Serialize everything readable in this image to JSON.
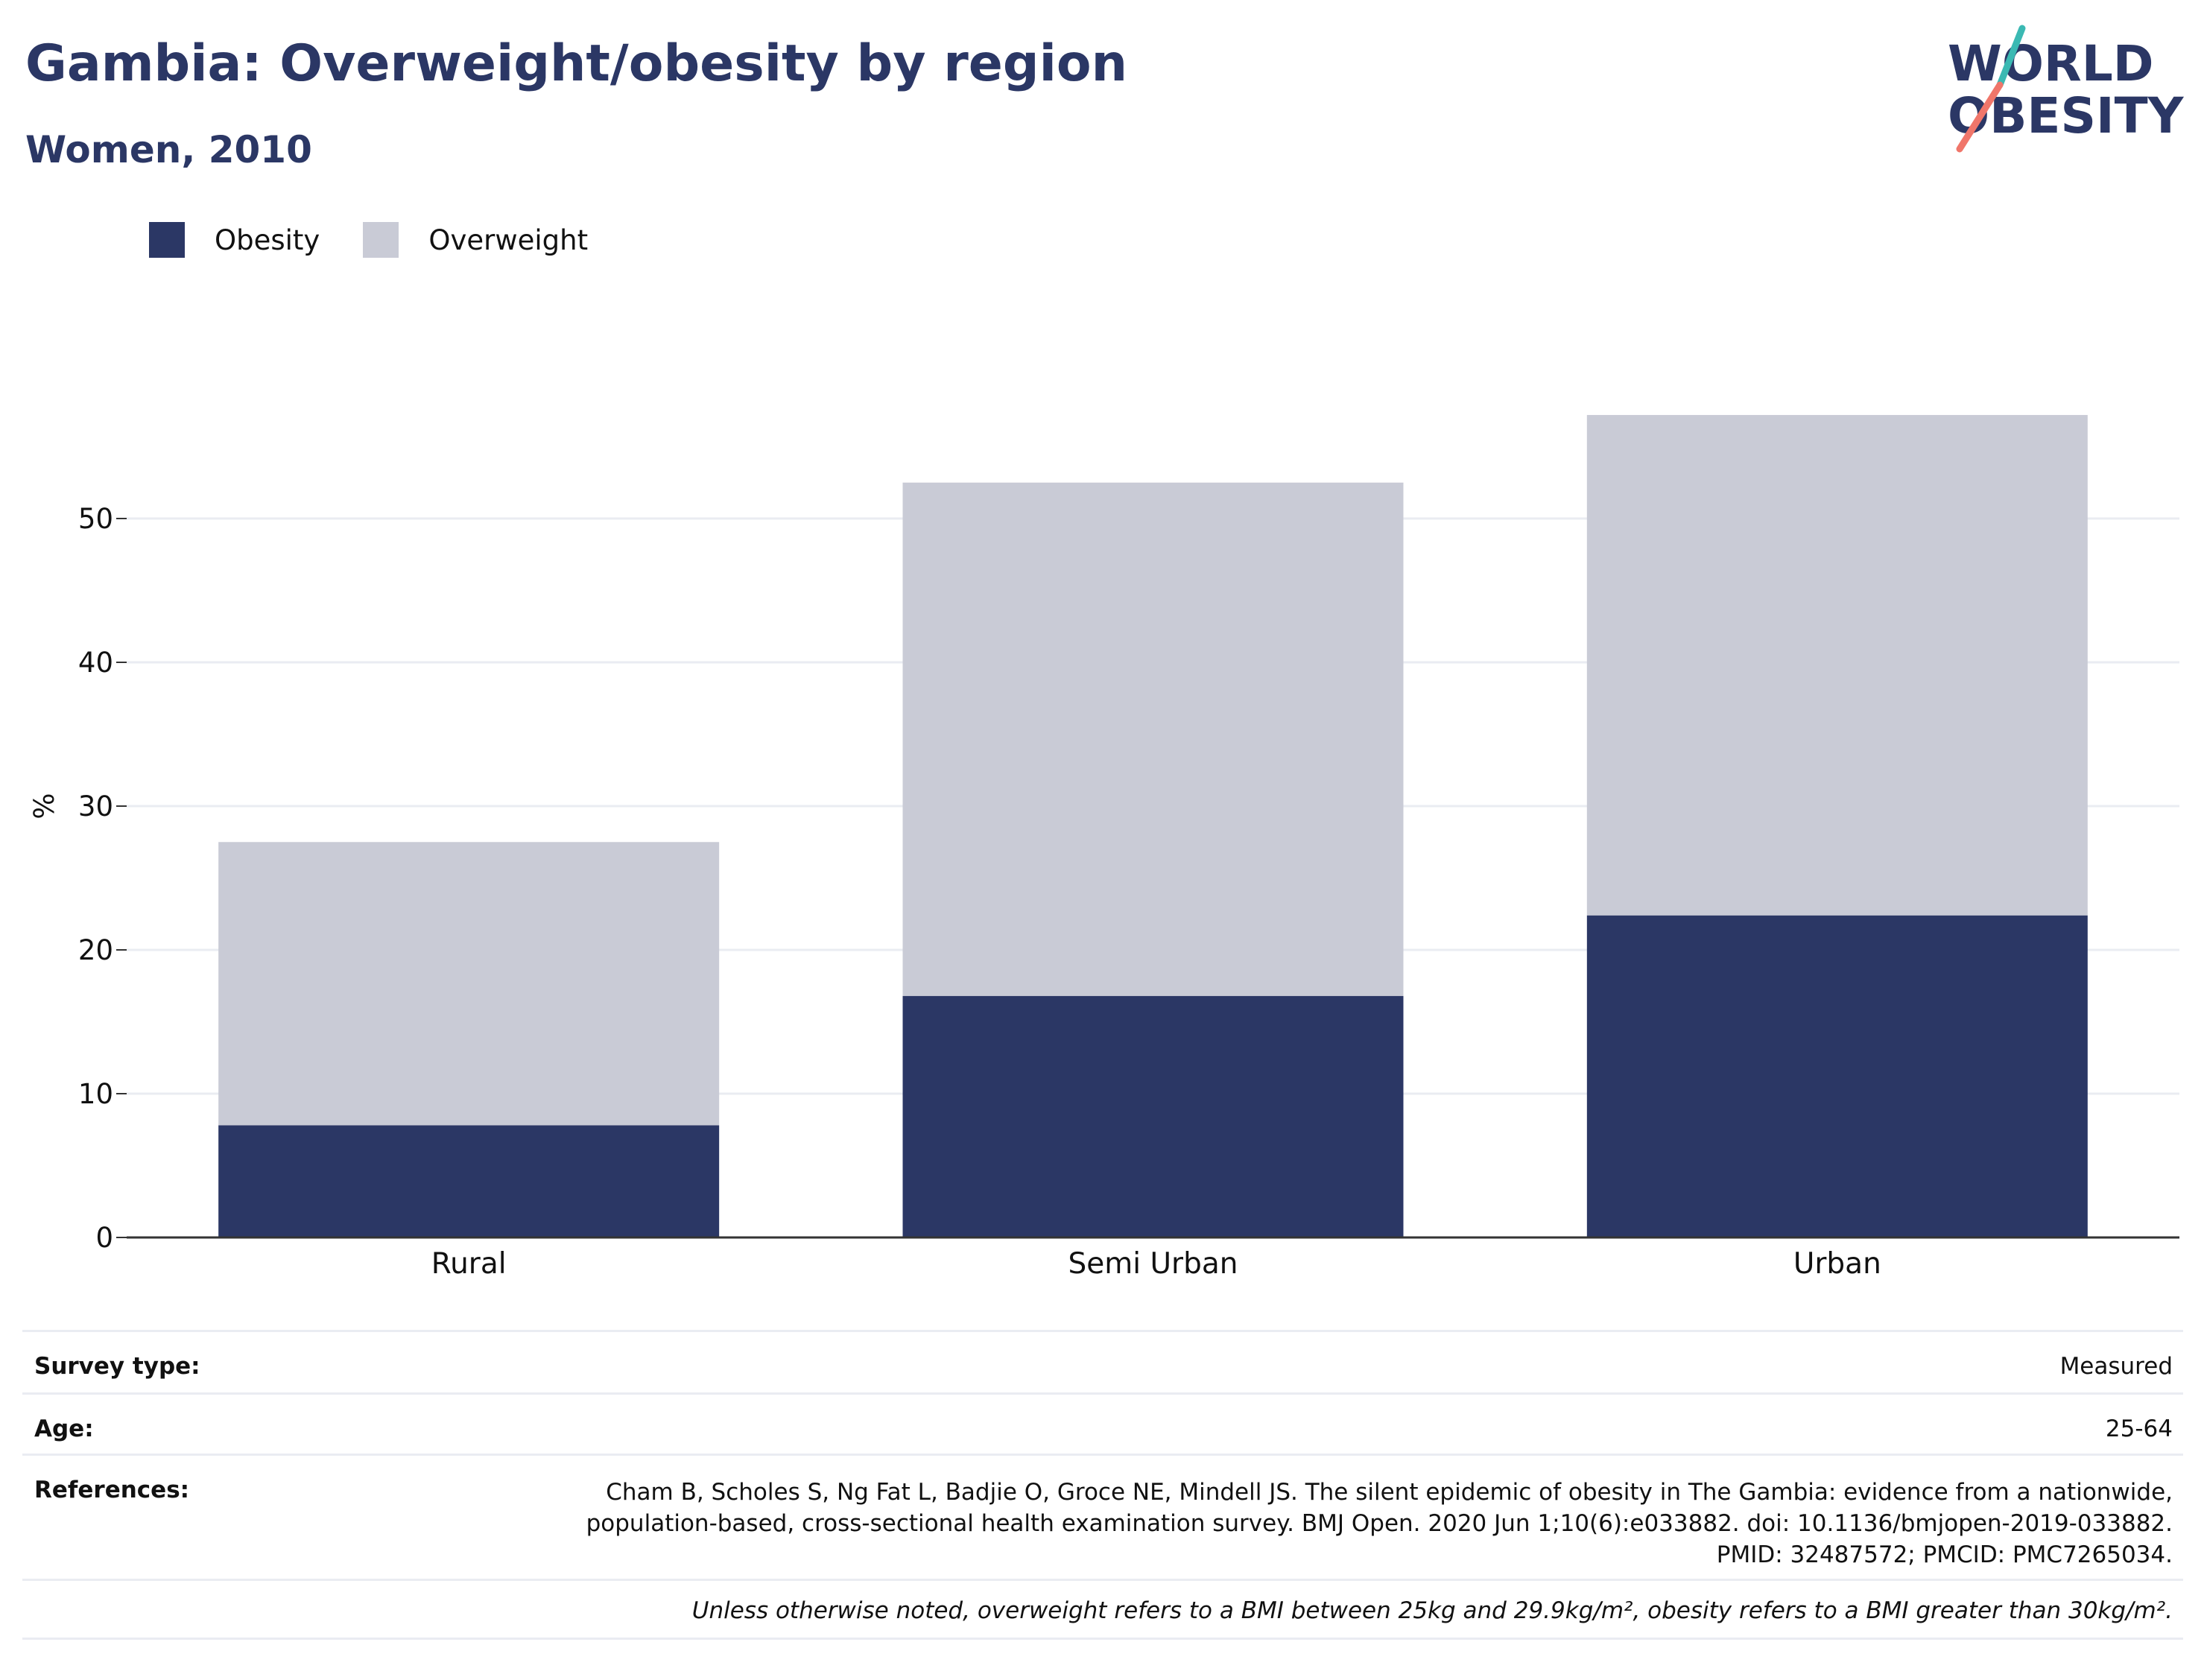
{
  "header": {
    "title": "Gambia: Overweight/obesity by region",
    "subtitle": "Women, 2010"
  },
  "logo": {
    "line1": "WORLD",
    "line2": "OBESITY"
  },
  "colors": {
    "obesity": "#2b3765",
    "overweight": "#c9cbd6",
    "text_dark": "#2b3765",
    "logo_teal": "#3bb9b3",
    "logo_coral": "#f0766a",
    "grid": "#eaecf2"
  },
  "chart_data": {
    "type": "bar",
    "stacked": true,
    "categories": [
      "Rural",
      "Semi Urban",
      "Urban"
    ],
    "series": [
      {
        "name": "Obesity",
        "values": [
          7.8,
          16.8,
          22.4
        ]
      },
      {
        "name": "Overweight",
        "values": [
          19.7,
          35.7,
          34.8
        ]
      }
    ],
    "ylabel": "%",
    "xlabel": "",
    "ylim": [
      0,
      60
    ],
    "yticks": [
      0,
      10,
      20,
      30,
      40,
      50
    ],
    "grid": true,
    "legend_position": "top-left"
  },
  "info": {
    "survey_type_label": "Survey type:",
    "survey_type_value": "Measured",
    "age_label": "Age:",
    "age_value": "25-64",
    "references_label": "References:",
    "references_value": "Cham B, Scholes S, Ng Fat L, Badjie O, Groce NE, Mindell JS. The silent epidemic of obesity in The Gambia: evidence from a nationwide, population-based, cross-sectional health examination survey. BMJ Open. 2020 Jun 1;10(6):e033882. doi: 10.1136/bmjopen-2019-033882. PMID: 32487572; PMCID: PMC7265034.",
    "note": "Unless otherwise noted, overweight refers to a BMI between 25kg and 29.9kg/m², obesity refers to a BMI greater than 30kg/m²."
  }
}
